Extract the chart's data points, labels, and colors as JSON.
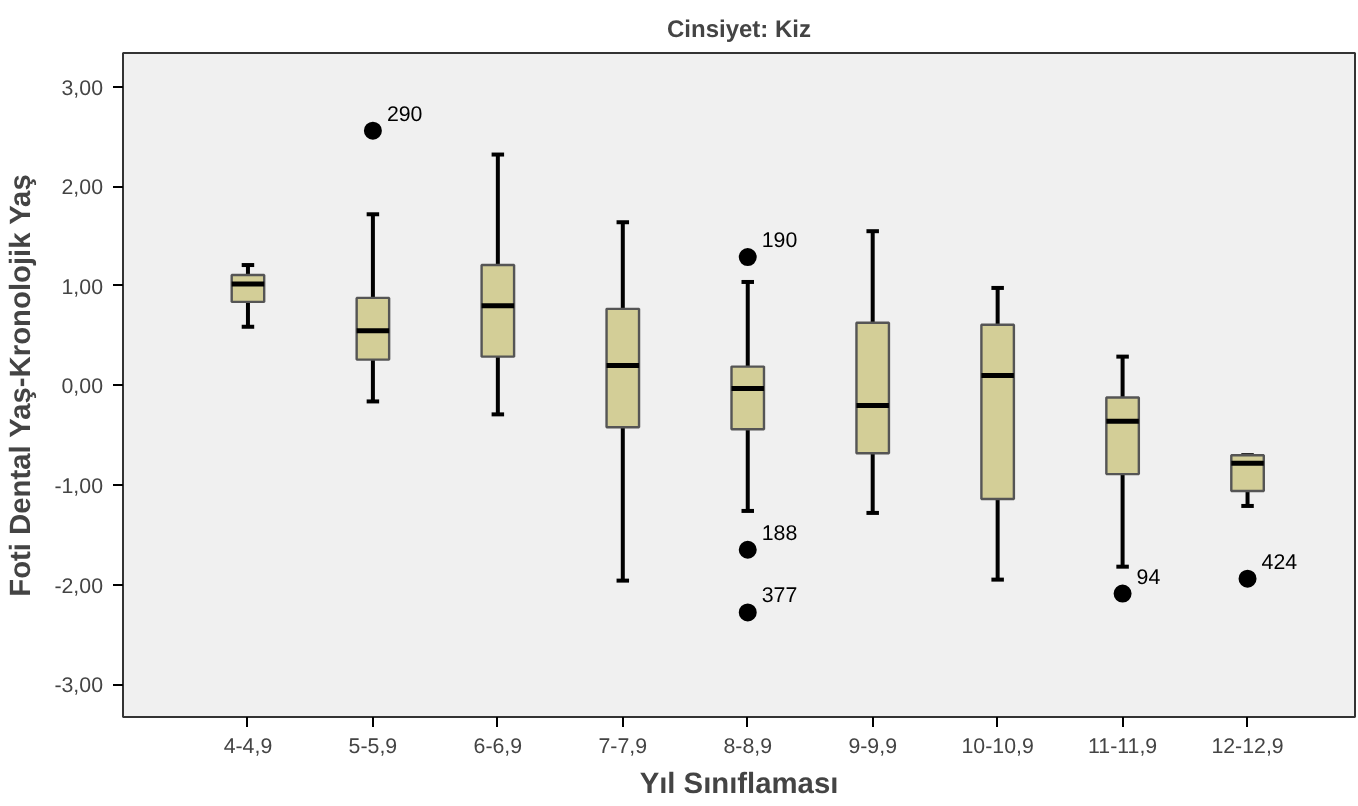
{
  "chart_data": {
    "type": "box",
    "title": "Cinsiyet: Kiz",
    "xlabel": "Yıl Sınıflaması",
    "ylabel": "Foti Dental Yaş-Kronolojik Yaş",
    "categories": [
      "4-4,9",
      "5-5,9",
      "6-6,9",
      "7-7,9",
      "8-8,9",
      "9-9,9",
      "10-10,9",
      "11-11,9",
      "12-12,9"
    ],
    "boxes": [
      {
        "low": 0.59,
        "q1": 0.84,
        "median": 1.02,
        "q3": 1.11,
        "high": 1.21
      },
      {
        "low": -0.16,
        "q1": 0.26,
        "median": 0.55,
        "q3": 0.88,
        "high": 1.72,
        "outliers": [
          2.56
        ]
      },
      {
        "low": -0.29,
        "q1": 0.29,
        "median": 0.8,
        "q3": 1.21,
        "high": 2.32
      },
      {
        "low": -1.96,
        "q1": -0.42,
        "median": 0.2,
        "q3": 0.77,
        "high": 1.64
      },
      {
        "low": -1.26,
        "q1": -0.44,
        "median": -0.03,
        "q3": 0.19,
        "high": 1.04,
        "outliers": [
          1.29,
          -1.65,
          -2.28
        ]
      },
      {
        "low": -1.28,
        "q1": -0.68,
        "median": -0.2,
        "q3": 0.63,
        "high": 1.55
      },
      {
        "low": -1.95,
        "q1": -1.14,
        "median": 0.1,
        "q3": 0.61,
        "high": 0.98
      },
      {
        "low": -1.82,
        "q1": -0.89,
        "median": -0.36,
        "q3": -0.12,
        "high": 0.29,
        "outliers": [
          -2.09
        ]
      },
      {
        "low": -1.21,
        "q1": -1.06,
        "median": -0.78,
        "q3": -0.7,
        "high": -0.7,
        "outliers": [
          -1.94
        ]
      }
    ],
    "color": "#d3ce97",
    "ylim": [
      -3.33,
      3.34
    ],
    "yticks": [
      {
        "value": -3,
        "label": "-3,00"
      },
      {
        "value": -2,
        "label": "-2,00"
      },
      {
        "value": -1,
        "label": "-1,00"
      },
      {
        "value": 0,
        "label": "0,00"
      },
      {
        "value": 1,
        "label": "1,00"
      },
      {
        "value": 2,
        "label": "2,00"
      },
      {
        "value": 3,
        "label": "3,00"
      }
    ],
    "grid": false,
    "annotations": [
      "290",
      "190",
      "188",
      "377",
      "94",
      "424"
    ]
  }
}
